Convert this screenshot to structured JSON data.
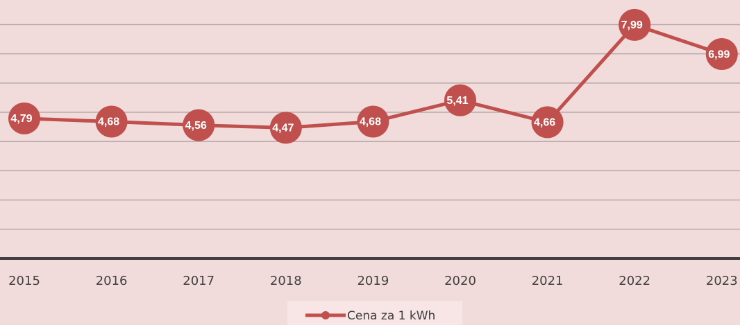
{
  "chart_data": {
    "type": "line",
    "categories": [
      "2015",
      "2016",
      "2017",
      "2018",
      "2019",
      "2020",
      "2021",
      "2022",
      "2023"
    ],
    "series": [
      {
        "name": "Cena za 1 kWh",
        "color": "#c0504d",
        "values": [
          4.79,
          4.68,
          4.56,
          4.47,
          4.68,
          5.41,
          4.66,
          7.99,
          6.99
        ],
        "value_labels": [
          "4,79",
          "4,68",
          "4,56",
          "4,47",
          "4,68",
          "5,41",
          "4,66",
          "7,99",
          "6,99"
        ]
      }
    ],
    "ylim": [
      0,
      8.84
    ],
    "yticks": [
      0,
      1,
      2,
      3,
      4,
      5,
      6,
      7,
      8
    ],
    "grid": true,
    "legend": "bottom"
  }
}
